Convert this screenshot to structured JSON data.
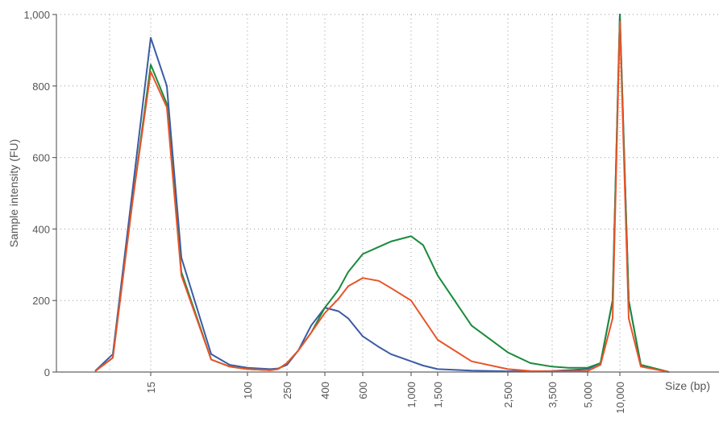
{
  "chart_data": {
    "type": "line",
    "title": "",
    "xlabel": "Size (bp)",
    "ylabel": "Sample intensity (FU)",
    "ylim": [
      0,
      1000
    ],
    "y_ticks": [
      0,
      200,
      400,
      600,
      800,
      1000
    ],
    "y_tick_labels": [
      "0",
      "200",
      "400",
      "600",
      "800",
      "1,000"
    ],
    "x_ticks": [
      15,
      100,
      250,
      400,
      600,
      1000,
      1500,
      2500,
      3500,
      5000,
      10000
    ],
    "x_tick_labels": [
      "15",
      "100",
      "250",
      "400",
      "600",
      "1,000",
      "1,500",
      "2,500",
      "3,500",
      "5,000",
      "10,000"
    ],
    "x_scale": "categorical-ladder",
    "grid": true,
    "legend": "none",
    "series": [
      {
        "color": "#3b5ba5",
        "x": [
          12,
          13,
          14,
          15,
          16,
          18,
          25,
          50,
          100,
          160,
          200,
          250,
          300,
          350,
          400,
          450,
          500,
          600,
          700,
          800,
          1000,
          1200,
          1500,
          2000,
          2500,
          3000,
          3500,
          4000,
          5000,
          7000,
          9000,
          10000,
          11000,
          12000,
          15000
        ],
        "y": [
          3,
          50,
          500,
          935,
          800,
          320,
          50,
          20,
          12,
          8,
          10,
          20,
          60,
          130,
          180,
          170,
          150,
          100,
          70,
          50,
          30,
          18,
          8,
          4,
          2,
          2,
          3,
          5,
          8,
          25,
          200,
          1000,
          200,
          20,
          0
        ]
      },
      {
        "color": "#1a8a3c",
        "x": [
          12,
          13,
          14,
          15,
          16,
          18,
          25,
          50,
          100,
          160,
          200,
          250,
          300,
          350,
          400,
          450,
          500,
          600,
          700,
          800,
          1000,
          1200,
          1500,
          2000,
          2500,
          3000,
          3500,
          4000,
          5000,
          7000,
          9000,
          10000,
          11000,
          12000,
          15000
        ],
        "y": [
          2,
          40,
          470,
          860,
          750,
          280,
          35,
          15,
          8,
          5,
          8,
          25,
          60,
          110,
          180,
          230,
          280,
          330,
          350,
          365,
          380,
          355,
          270,
          130,
          55,
          25,
          15,
          12,
          12,
          25,
          200,
          1000,
          200,
          20,
          0
        ]
      },
      {
        "color": "#e8542a",
        "x": [
          12,
          13,
          14,
          15,
          16,
          18,
          25,
          50,
          100,
          160,
          200,
          250,
          300,
          350,
          400,
          450,
          500,
          600,
          700,
          800,
          1000,
          1200,
          1500,
          2000,
          2500,
          3000,
          3500,
          4000,
          5000,
          7000,
          9000,
          10000,
          11000,
          12000,
          15000
        ],
        "y": [
          2,
          40,
          470,
          840,
          740,
          270,
          35,
          15,
          8,
          5,
          8,
          25,
          60,
          110,
          165,
          205,
          240,
          263,
          255,
          235,
          200,
          150,
          90,
          30,
          8,
          3,
          2,
          2,
          3,
          20,
          150,
          980,
          150,
          15,
          0
        ]
      }
    ]
  }
}
